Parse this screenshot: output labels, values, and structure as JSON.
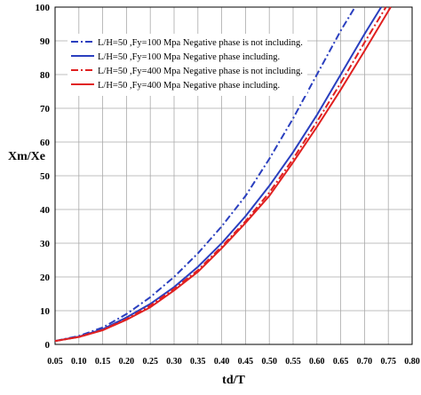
{
  "chart_data": {
    "type": "line",
    "xlabel": "td/T",
    "ylabel": "Xm/Xe",
    "xlim": [
      0.05,
      0.8
    ],
    "ylim": [
      0,
      100
    ],
    "xticks": [
      0.05,
      {
        "value": 0.1,
        "label": "0.10"
      },
      0.15,
      {
        "value": 0.2,
        "label": "0.20"
      },
      0.25,
      {
        "value": 0.3,
        "label": "0.30"
      },
      0.35,
      {
        "value": 0.4,
        "label": "0.40"
      },
      0.45,
      {
        "value": 0.5,
        "label": "0.50"
      },
      0.55,
      {
        "value": 0.6,
        "label": "0.60"
      },
      0.65,
      {
        "value": 0.7,
        "label": "0.70"
      },
      0.75,
      {
        "value": 0.8,
        "label": "0.80"
      }
    ],
    "yticks": [
      0,
      10,
      20,
      30,
      40,
      50,
      60,
      70,
      80,
      90,
      100
    ],
    "grid": true,
    "legend": "upper left",
    "series": [
      {
        "name": "L/H=50 ,Fy=100 Mpa Negative phase is not  including.",
        "color": "#2a3fbf",
        "dash": "dash-dot",
        "x": [
          0.05,
          0.1,
          0.15,
          0.2,
          0.25,
          0.3,
          0.35,
          0.4,
          0.45,
          0.5,
          0.55,
          0.6,
          0.65,
          0.68
        ],
        "values": [
          1,
          2.5,
          5,
          9,
          14,
          20,
          27,
          35,
          44,
          55,
          67,
          80,
          93,
          100
        ]
      },
      {
        "name": "L/H=50 ,Fy=100 Mpa Negative phase including.",
        "color": "#2a3fbf",
        "dash": "solid",
        "x": [
          0.05,
          0.1,
          0.15,
          0.2,
          0.25,
          0.3,
          0.35,
          0.4,
          0.45,
          0.5,
          0.55,
          0.6,
          0.65,
          0.7,
          0.735
        ],
        "values": [
          1,
          2.3,
          4.5,
          8,
          12,
          17,
          23,
          30,
          38,
          47,
          57,
          68,
          80,
          92,
          100
        ]
      },
      {
        "name": "L/H=50 ,Fy=400 Mpa Negative phase is not  including.",
        "color": "#e02020",
        "dash": "dash-dot",
        "x": [
          0.05,
          0.1,
          0.15,
          0.2,
          0.25,
          0.3,
          0.35,
          0.4,
          0.45,
          0.5,
          0.55,
          0.6,
          0.65,
          0.7,
          0.745
        ],
        "values": [
          1,
          2.2,
          4.3,
          7.5,
          11.5,
          16.5,
          22,
          29,
          36.5,
          45,
          55,
          66,
          77.5,
          89.5,
          100
        ]
      },
      {
        "name": "L/H=50 ,Fy=400 Mpa Negative phase including.",
        "color": "#e02020",
        "dash": "solid",
        "x": [
          0.05,
          0.1,
          0.15,
          0.2,
          0.25,
          0.3,
          0.35,
          0.4,
          0.45,
          0.5,
          0.55,
          0.6,
          0.65,
          0.7,
          0.755
        ],
        "values": [
          1,
          2.2,
          4.2,
          7.3,
          11,
          16,
          21.5,
          28.5,
          36,
          44,
          54,
          64.5,
          75.5,
          87,
          100
        ]
      }
    ]
  }
}
